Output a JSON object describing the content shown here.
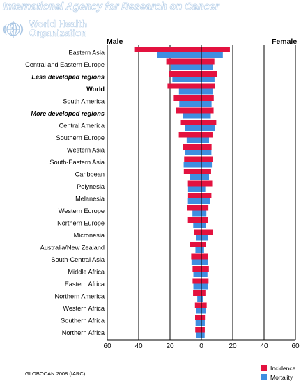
{
  "header": {
    "org_title": "International Agency for Research on Cancer",
    "who_name_lines": [
      "World Health",
      "Organization"
    ],
    "logo_icon": "who-emblem-icon"
  },
  "labels": {
    "left_side": "Male",
    "right_side": "Female"
  },
  "footer": {
    "source": "GLOBOCAN 2008 (IARC)"
  },
  "colors": {
    "incidence": "#e3123f",
    "mortality": "#3f8ee0"
  },
  "chart_data": {
    "type": "bar",
    "orientation": "horizontal-back-to-back",
    "title": "",
    "xlabel": "",
    "ylabel": "",
    "xlim": [
      -60,
      60
    ],
    "xticks": [
      60,
      40,
      20,
      0,
      20,
      40,
      60
    ],
    "grid": true,
    "legend_position": "bottom-right",
    "categories": [
      {
        "name": "Eastern Asia",
        "style": "normal"
      },
      {
        "name": "Central and Eastern Europe",
        "style": "normal"
      },
      {
        "name": "Less developed regions",
        "style": "bold-italic"
      },
      {
        "name": "World",
        "style": "bold"
      },
      {
        "name": "South America",
        "style": "normal"
      },
      {
        "name": "More developed regions",
        "style": "bold-italic"
      },
      {
        "name": "Central America",
        "style": "normal"
      },
      {
        "name": "Southern Europe",
        "style": "normal"
      },
      {
        "name": "Western Asia",
        "style": "normal"
      },
      {
        "name": "South-Eastern Asia",
        "style": "normal"
      },
      {
        "name": "Caribbean",
        "style": "normal"
      },
      {
        "name": "Polynesia",
        "style": "normal"
      },
      {
        "name": "Melanesia",
        "style": "normal"
      },
      {
        "name": "Western Europe",
        "style": "normal"
      },
      {
        "name": "Northern Europe",
        "style": "normal"
      },
      {
        "name": "Micronesia",
        "style": "normal"
      },
      {
        "name": "Australia/New Zealand",
        "style": "normal"
      },
      {
        "name": "South-Central Asia",
        "style": "normal"
      },
      {
        "name": "Middle Africa",
        "style": "normal"
      },
      {
        "name": "Eastern Africa",
        "style": "normal"
      },
      {
        "name": "Northern America",
        "style": "normal"
      },
      {
        "name": "Western Africa",
        "style": "normal"
      },
      {
        "name": "Southern Africa",
        "style": "normal"
      },
      {
        "name": "Northern Africa",
        "style": "normal"
      }
    ],
    "series": [
      {
        "name": "Incidence",
        "side": "Male",
        "values": [
          42.4,
          22.4,
          20.5,
          21.6,
          17.6,
          16.4,
          13.1,
          14.4,
          12.0,
          11.0,
          11.2,
          8.6,
          8.5,
          8.9,
          8.6,
          4.8,
          7.5,
          6.5,
          5.6,
          5.6,
          5.3,
          4.1,
          4.0,
          3.9
        ]
      },
      {
        "name": "Mortality",
        "side": "Male",
        "values": [
          28.1,
          19.5,
          18.5,
          14.3,
          14.1,
          12.0,
          10.4,
          9.4,
          10.6,
          11.3,
          7.5,
          8.5,
          8.6,
          5.7,
          5.2,
          3.5,
          3.8,
          6.3,
          5.1,
          5.1,
          2.6,
          3.3,
          3.7,
          3.4
        ]
      },
      {
        "name": "Incidence",
        "side": "Female",
        "values": [
          18.2,
          8.3,
          9.8,
          8.8,
          7.9,
          7.8,
          9.5,
          7.1,
          6.5,
          7.1,
          6.2,
          6.9,
          6.4,
          4.5,
          4.4,
          7.5,
          3.1,
          4.0,
          4.8,
          4.6,
          2.6,
          3.4,
          2.3,
          2.2
        ]
      },
      {
        "name": "Mortality",
        "side": "Female",
        "values": [
          13.7,
          7.5,
          8.4,
          7.1,
          6.5,
          6.0,
          8.5,
          4.9,
          6.4,
          6.7,
          4.9,
          2.5,
          5.4,
          3.2,
          2.8,
          4.4,
          1.7,
          4.1,
          3.9,
          4.1,
          1.1,
          2.9,
          2.2,
          2.1
        ]
      }
    ]
  },
  "legend": [
    {
      "label": "Incidence",
      "color": "#e3123f"
    },
    {
      "label": "Mortality",
      "color": "#3f8ee0"
    }
  ]
}
